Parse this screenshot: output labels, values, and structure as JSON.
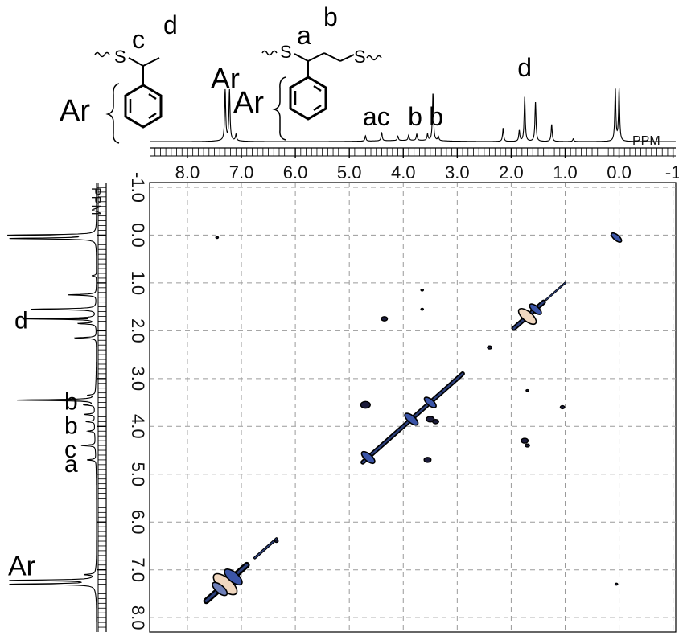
{
  "chart_data": {
    "type": "2D-NMR-COSY",
    "x_axis": {
      "unit": "PPM",
      "range": [
        8.7,
        -1.05
      ],
      "reversed": true,
      "ticks": [
        8.0,
        7.0,
        6.0,
        5.0,
        4.0,
        3.0,
        2.0,
        1.0,
        0.0,
        -1.0
      ],
      "tick_labels": [
        "8.0",
        "7.0",
        "6.0",
        "5.0",
        "4.0",
        "3.0",
        "2.0",
        "1.0",
        "0.0",
        "-1"
      ]
    },
    "y_axis": {
      "unit": "PPM",
      "range": [
        -1.1,
        8.3
      ],
      "reversed": true,
      "ticks": [
        -1.0,
        0.0,
        1.0,
        2.0,
        3.0,
        4.0,
        5.0,
        6.0,
        7.0,
        8.0
      ],
      "tick_labels": [
        "-1.0",
        "0.0",
        "1.0",
        "2.0",
        "3.0",
        "4.0",
        "5.0",
        "6.0",
        "7.0",
        "8.0"
      ]
    },
    "grid": true,
    "grid_style": "dashed",
    "spectrum_1d": {
      "peaks": [
        {
          "ppm": 7.3,
          "height": 0.95
        },
        {
          "ppm": 7.22,
          "height": 0.95
        },
        {
          "ppm": 7.1,
          "height": 0.12
        },
        {
          "ppm": 4.7,
          "height": 0.1
        },
        {
          "ppm": 4.4,
          "height": 0.16
        },
        {
          "ppm": 4.1,
          "height": 0.08
        },
        {
          "ppm": 3.9,
          "height": 0.1
        },
        {
          "ppm": 3.75,
          "height": 0.12
        },
        {
          "ppm": 3.55,
          "height": 0.12
        },
        {
          "ppm": 3.45,
          "height": 0.9
        },
        {
          "ppm": 3.35,
          "height": 0.08
        },
        {
          "ppm": 2.15,
          "height": 0.25
        },
        {
          "ppm": 1.85,
          "height": 0.2
        },
        {
          "ppm": 1.75,
          "height": 0.85
        },
        {
          "ppm": 1.55,
          "height": 0.75
        },
        {
          "ppm": 1.25,
          "height": 0.32
        },
        {
          "ppm": 0.85,
          "height": 0.05
        },
        {
          "ppm": 0.07,
          "height": 0.98
        },
        {
          "ppm": 0.0,
          "height": 0.98
        }
      ]
    },
    "diagonal_segments": [
      {
        "from": 7.65,
        "to": 6.9,
        "weight": 3.5
      },
      {
        "from": 6.75,
        "to": 6.35,
        "weight": 1.6
      },
      {
        "from": 4.75,
        "to": 2.9,
        "weight": 2.6
      },
      {
        "from": 1.95,
        "to": 1.4,
        "weight": 2.8
      },
      {
        "from": 1.35,
        "to": 1.0,
        "weight": 1.2
      }
    ],
    "diagonal_clusters": [
      {
        "x": 7.3,
        "y": 7.3,
        "size": 1.6,
        "color": "#f1d8c0"
      },
      {
        "x": 7.15,
        "y": 7.15,
        "size": 1.2,
        "color": "#3b55a8"
      },
      {
        "x": 7.4,
        "y": 7.4,
        "size": 1.0,
        "color": "#6e7fb8"
      },
      {
        "x": 4.65,
        "y": 4.65,
        "size": 0.9,
        "color": "#3b55a8"
      },
      {
        "x": 3.85,
        "y": 3.85,
        "size": 0.9,
        "color": "#3b55a8"
      },
      {
        "x": 3.5,
        "y": 3.5,
        "size": 0.8,
        "color": "#3b55a8"
      },
      {
        "x": 1.7,
        "y": 1.7,
        "size": 1.2,
        "color": "#f1d8c0"
      },
      {
        "x": 1.55,
        "y": 1.55,
        "size": 0.8,
        "color": "#3b55a8"
      },
      {
        "x": 0.05,
        "y": 0.05,
        "size": 0.7,
        "color": "#3b55a8"
      }
    ],
    "cross_peaks": [
      {
        "x": 4.7,
        "y": 3.55,
        "size": 1.1
      },
      {
        "x": 3.55,
        "y": 4.7,
        "size": 0.8
      },
      {
        "x": 3.5,
        "y": 3.85,
        "size": 0.9
      },
      {
        "x": 3.4,
        "y": 3.9,
        "size": 0.7
      },
      {
        "x": 4.35,
        "y": 1.75,
        "size": 0.7
      },
      {
        "x": 1.75,
        "y": 4.3,
        "size": 0.8
      },
      {
        "x": 1.7,
        "y": 4.4,
        "size": 0.5
      },
      {
        "x": 2.4,
        "y": 2.35,
        "size": 0.5
      },
      {
        "x": 3.65,
        "y": 1.15,
        "size": 0.3
      },
      {
        "x": 3.65,
        "y": 1.55,
        "size": 0.3
      },
      {
        "x": 1.05,
        "y": 3.6,
        "size": 0.5
      },
      {
        "x": 1.7,
        "y": 3.25,
        "size": 0.3
      },
      {
        "x": 6.35,
        "y": 6.4,
        "size": 0.4
      },
      {
        "x": 0.05,
        "y": 7.3,
        "size": 0.3
      },
      {
        "x": 7.45,
        "y": 0.05,
        "size": 0.3
      }
    ],
    "annotations_top": [
      {
        "text": "Ar",
        "ppm": 7.3
      },
      {
        "text": "ac",
        "ppm": 4.5
      },
      {
        "text": "b",
        "ppm": 3.75
      },
      {
        "text": "b",
        "ppm": 3.45
      },
      {
        "text": "d",
        "ppm": 1.75
      }
    ],
    "annotations_left": [
      {
        "text": "d",
        "ppm": 1.75
      },
      {
        "text": "b",
        "ppm": 3.45
      },
      {
        "text": "b",
        "ppm": 3.95
      },
      {
        "text": "c",
        "ppm": 4.45
      },
      {
        "text": "a",
        "ppm": 4.75
      },
      {
        "text": "Ar",
        "ppm": 7.25
      }
    ]
  },
  "structures": {
    "left": {
      "ar_label": "Ar",
      "label_c": "c",
      "label_d": "d",
      "atom_s": "S"
    },
    "right": {
      "ar_label": "Ar",
      "label_a": "a",
      "label_b": "b",
      "atom_s1": "S",
      "atom_s2": "S"
    }
  }
}
